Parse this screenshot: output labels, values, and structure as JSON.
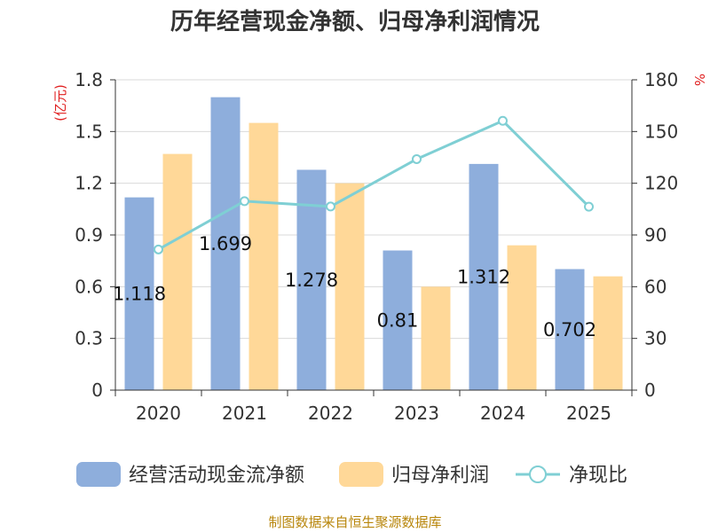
{
  "chart_data": {
    "type": "bar",
    "title": "历年经营现金净额、归母净利润情况",
    "categories": [
      "2020",
      "2021",
      "2022",
      "2023",
      "2024",
      "2025"
    ],
    "series": [
      {
        "name": "经营活动现金流净额",
        "type": "bar",
        "axis": "left",
        "color": "#8eaedc",
        "values": [
          1.118,
          1.699,
          1.278,
          0.81,
          1.312,
          0.702
        ],
        "labels": [
          "1.118",
          "1.699",
          "1.278",
          "0.81",
          "1.312",
          "0.702"
        ]
      },
      {
        "name": "归母净利润",
        "type": "bar",
        "axis": "left",
        "color": "#ffd898",
        "values": [
          1.37,
          1.55,
          1.2,
          0.6,
          0.84,
          0.66
        ]
      },
      {
        "name": "净现比",
        "type": "line",
        "axis": "right",
        "color": "#7fcfd4",
        "values": [
          81.6,
          109.6,
          106.5,
          134.0,
          156.2,
          106.4
        ]
      }
    ],
    "left_axis": {
      "unit_label": "(亿元)",
      "ylim": [
        0,
        1.8
      ],
      "ticks": [
        "0",
        "0.3",
        "0.6",
        "0.9",
        "1.2",
        "1.5",
        "1.8"
      ]
    },
    "right_axis": {
      "unit_label": "%",
      "ylim": [
        0,
        180
      ],
      "ticks": [
        "0",
        "30",
        "60",
        "90",
        "120",
        "150",
        "180"
      ]
    },
    "grid": true,
    "legend_position": "bottom"
  },
  "source": "制图数据来自恒生聚源数据库"
}
